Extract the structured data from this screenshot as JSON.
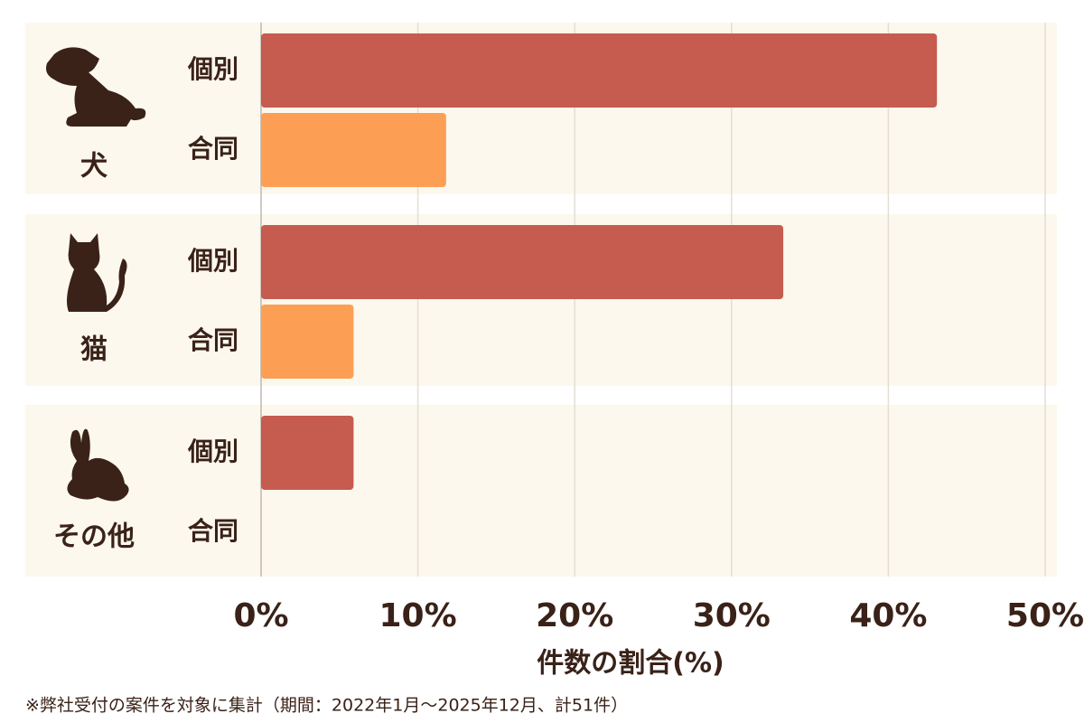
{
  "chart_data": {
    "type": "bar",
    "orientation": "horizontal",
    "groups": [
      "犬",
      "猫",
      "その他"
    ],
    "series": [
      {
        "name": "個別",
        "color": "#c55c4f",
        "values": [
          43.1,
          33.3,
          5.9
        ]
      },
      {
        "name": "合同",
        "color": "#fc9f55",
        "values": [
          11.8,
          5.9,
          0
        ]
      }
    ],
    "xlim": [
      0,
      50
    ],
    "xticks": [
      {
        "value": 0,
        "label": "0%"
      },
      {
        "value": 10,
        "label": "10%"
      },
      {
        "value": 20,
        "label": "20%"
      },
      {
        "value": 30,
        "label": "30%"
      },
      {
        "value": 40,
        "label": "40%"
      },
      {
        "value": 50,
        "label": "50%"
      }
    ],
    "x_label": "件数の割合(%)",
    "grid": true,
    "footnote": "※弊社受付の案件を対象に集計（期間：2022年1月〜2025年12月、計51件）"
  }
}
